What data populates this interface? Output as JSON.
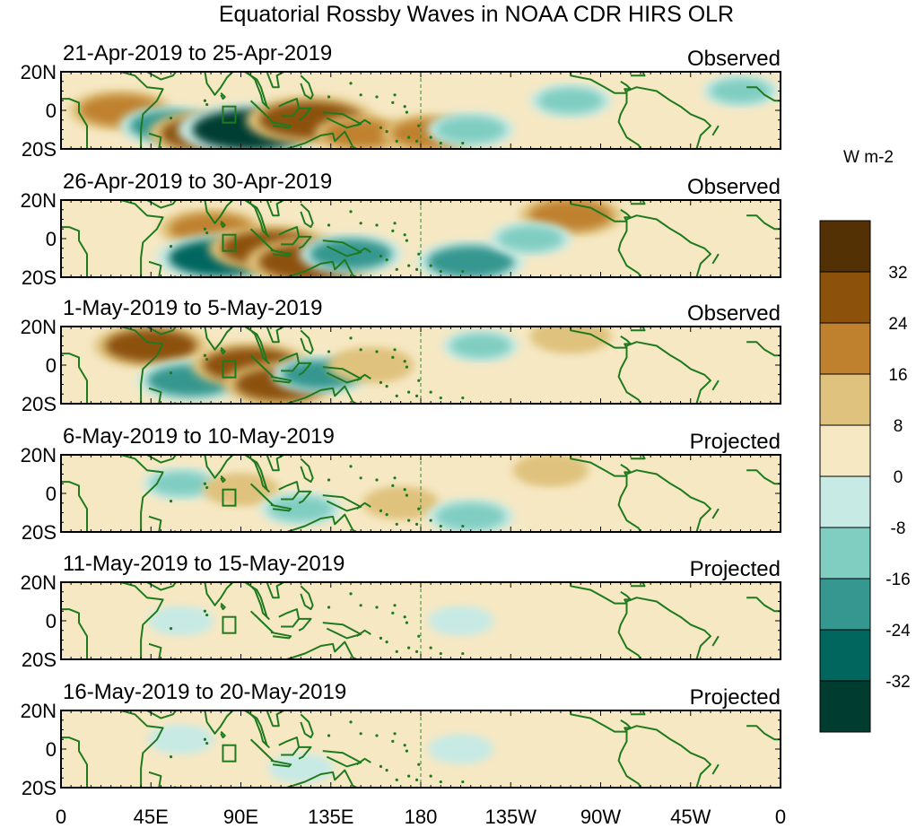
{
  "chart_data": {
    "type": "heatmap",
    "title": "Equatorial Rossby Waves in NOAA CDR HIRS OLR",
    "units": "W m-2",
    "x_ticks": [
      "0",
      "45E",
      "90E",
      "135E",
      "180",
      "135W",
      "90W",
      "45W",
      "0"
    ],
    "x_tick_values": [
      0,
      45,
      90,
      135,
      180,
      225,
      270,
      315,
      360
    ],
    "y_ticks": [
      "20N",
      "0",
      "20S"
    ],
    "y_tick_values": [
      20,
      0,
      -20
    ],
    "xlim": [
      0,
      360
    ],
    "ylim": [
      -20,
      20
    ],
    "dateline_longitude": 180,
    "legend_position": "right",
    "colorbar": {
      "levels": [
        32,
        24,
        16,
        8,
        0,
        -8,
        -16,
        -24,
        -32
      ],
      "colors": [
        "#543005",
        "#8c510a",
        "#bf812d",
        "#dfc27d",
        "#f6e8c3",
        "#c7eae5",
        "#80cdc1",
        "#35978f",
        "#01665e",
        "#003c30"
      ]
    },
    "panels": [
      {
        "dates": "21-Apr-2019 to 25-Apr-2019",
        "status": "Observed",
        "anomalies": [
          {
            "lon": 30,
            "lat": 0,
            "value": 20
          },
          {
            "lon": 55,
            "lat": -8,
            "value": -20
          },
          {
            "lon": 75,
            "lat": -12,
            "value": 28
          },
          {
            "lon": 95,
            "lat": -10,
            "value": -36
          },
          {
            "lon": 125,
            "lat": -5,
            "value": 30
          },
          {
            "lon": 150,
            "lat": -12,
            "value": 16
          },
          {
            "lon": 185,
            "lat": -12,
            "value": 18
          },
          {
            "lon": 205,
            "lat": -10,
            "value": -14
          },
          {
            "lon": 255,
            "lat": 5,
            "value": -12
          },
          {
            "lon": 340,
            "lat": 10,
            "value": -10
          }
        ]
      },
      {
        "dates": "26-Apr-2019 to 30-Apr-2019",
        "status": "Observed",
        "anomalies": [
          {
            "lon": 75,
            "lat": 5,
            "value": 20
          },
          {
            "lon": 80,
            "lat": -10,
            "value": -30
          },
          {
            "lon": 105,
            "lat": -5,
            "value": 28
          },
          {
            "lon": 125,
            "lat": -12,
            "value": 30
          },
          {
            "lon": 145,
            "lat": -8,
            "value": -20
          },
          {
            "lon": 205,
            "lat": -12,
            "value": -22
          },
          {
            "lon": 255,
            "lat": 12,
            "value": 20
          },
          {
            "lon": 235,
            "lat": 0,
            "value": -12
          }
        ]
      },
      {
        "dates": "1-May-2019 to 5-May-2019",
        "status": "Observed",
        "anomalies": [
          {
            "lon": 45,
            "lat": 10,
            "value": 24
          },
          {
            "lon": 65,
            "lat": -8,
            "value": -22
          },
          {
            "lon": 95,
            "lat": 0,
            "value": 26
          },
          {
            "lon": 110,
            "lat": -10,
            "value": 24
          },
          {
            "lon": 130,
            "lat": -5,
            "value": -18
          },
          {
            "lon": 155,
            "lat": 0,
            "value": 14
          },
          {
            "lon": 210,
            "lat": 10,
            "value": -10
          },
          {
            "lon": 255,
            "lat": 15,
            "value": 12
          }
        ]
      },
      {
        "dates": "6-May-2019 to 10-May-2019",
        "status": "Projected",
        "anomalies": [
          {
            "lon": 60,
            "lat": 5,
            "value": -10
          },
          {
            "lon": 90,
            "lat": 2,
            "value": 10
          },
          {
            "lon": 120,
            "lat": -8,
            "value": -12
          },
          {
            "lon": 170,
            "lat": -5,
            "value": 10
          },
          {
            "lon": 205,
            "lat": -12,
            "value": -14
          },
          {
            "lon": 245,
            "lat": 12,
            "value": 10
          }
        ]
      },
      {
        "dates": "11-May-2019 to 15-May-2019",
        "status": "Projected",
        "anomalies": [
          {
            "lon": 60,
            "lat": 0,
            "value": -6
          },
          {
            "lon": 120,
            "lat": 10,
            "value": 6
          },
          {
            "lon": 200,
            "lat": 0,
            "value": -6
          },
          {
            "lon": 250,
            "lat": 10,
            "value": 6
          }
        ]
      },
      {
        "dates": "16-May-2019 to 20-May-2019",
        "status": "Projected",
        "anomalies": [
          {
            "lon": 60,
            "lat": 5,
            "value": -6
          },
          {
            "lon": 120,
            "lat": -10,
            "value": -6
          },
          {
            "lon": 200,
            "lat": 0,
            "value": -6
          },
          {
            "lon": 250,
            "lat": 10,
            "value": 6
          }
        ]
      }
    ]
  }
}
